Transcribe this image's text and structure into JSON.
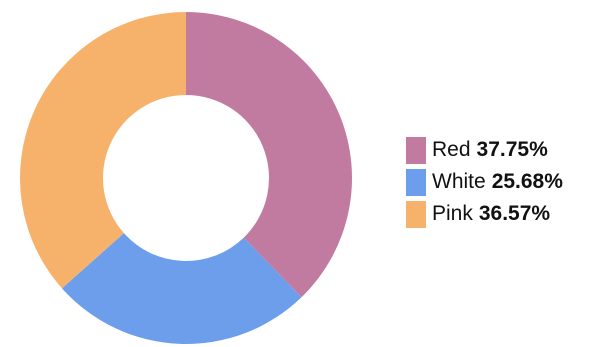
{
  "chart_data": {
    "type": "pie",
    "donut": true,
    "categories": [
      "Red",
      "White",
      "Pink"
    ],
    "values": [
      37.75,
      25.68,
      36.57
    ],
    "value_labels": [
      "37.75%",
      "25.68%",
      "36.57%"
    ],
    "colors": [
      "#c27ba0",
      "#6d9eeb",
      "#f6b26b"
    ],
    "legend_position": "right",
    "start": "top, clockwise"
  }
}
